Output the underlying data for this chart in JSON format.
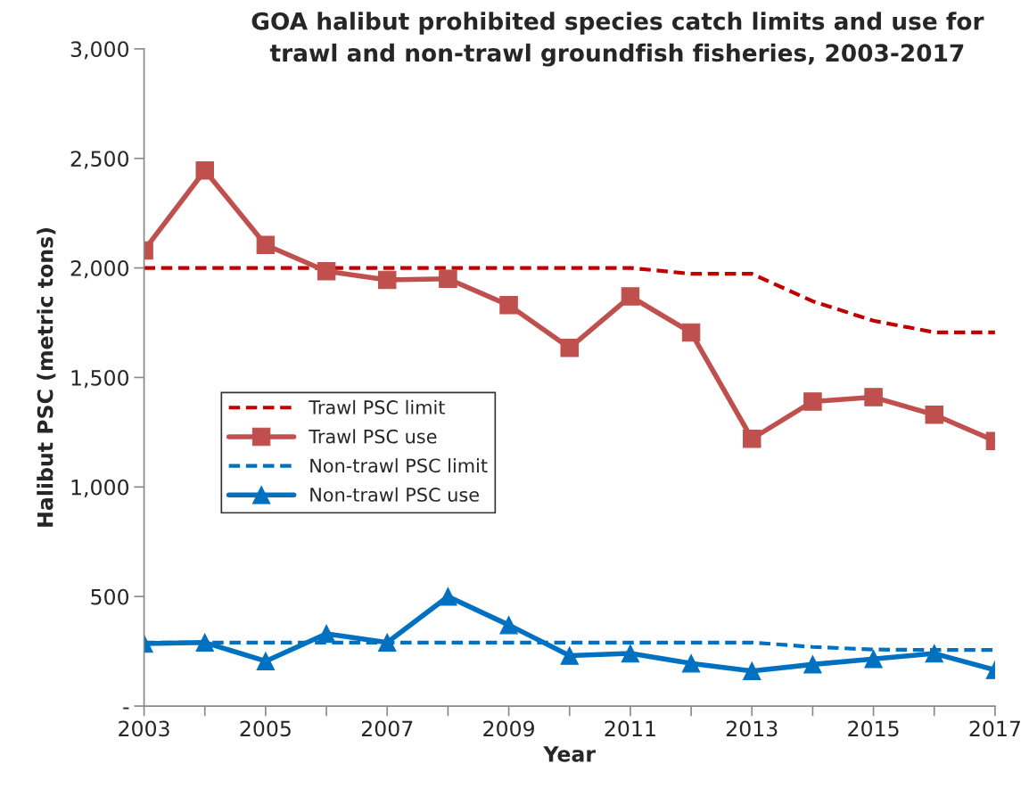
{
  "chart_data": {
    "type": "line",
    "title": "GOA halibut prohibited species catch limits and use for\ntrawl and non-trawl groundfish fisheries, 2003-2017",
    "xlabel": "Year",
    "ylabel": "Halibut PSC (metric tons)",
    "x": [
      2003,
      2004,
      2005,
      2006,
      2007,
      2008,
      2009,
      2010,
      2011,
      2012,
      2013,
      2014,
      2015,
      2016,
      2017
    ],
    "series": [
      {
        "name": "Trawl PSC limit",
        "color": "#c00000",
        "line_style": "dashed",
        "marker": "none",
        "values": [
          2000,
          2000,
          2000,
          2000,
          2000,
          2000,
          2000,
          2000,
          2000,
          1973,
          1973,
          1848,
          1759,
          1706,
          1706
        ]
      },
      {
        "name": "Trawl PSC use",
        "color": "#c0504d",
        "line_style": "solid",
        "marker": "square",
        "values": [
          2080,
          2445,
          2105,
          1985,
          1945,
          1950,
          1830,
          1635,
          1870,
          1705,
          1220,
          1390,
          1410,
          1330,
          1210
        ]
      },
      {
        "name": "Non-trawl PSC limit",
        "color": "#0070c0",
        "line_style": "dashed",
        "marker": "none",
        "values": [
          290,
          290,
          290,
          290,
          290,
          290,
          290,
          290,
          290,
          290,
          290,
          270,
          258,
          256,
          256
        ]
      },
      {
        "name": "Non-trawl PSC use",
        "color": "#0070c0",
        "line_style": "solid",
        "marker": "triangle",
        "values": [
          285,
          290,
          205,
          330,
          290,
          500,
          370,
          230,
          240,
          195,
          160,
          190,
          215,
          240,
          165
        ]
      }
    ],
    "xlim": [
      2003,
      2017
    ],
    "xticks": [
      2003,
      {
        "value": 2004,
        "label": null
      },
      2005,
      {
        "value": 2006,
        "label": null
      },
      2007,
      {
        "value": 2008,
        "label": null
      },
      2009,
      {
        "value": 2010,
        "label": null
      },
      2011,
      {
        "value": 2012,
        "label": null
      },
      2013,
      {
        "value": 2014,
        "label": null
      },
      2015,
      {
        "value": 2016,
        "label": null
      },
      2017
    ],
    "ylim": [
      0,
      3000
    ],
    "yticks": [
      {
        "value": 0,
        "label": "-"
      },
      500,
      {
        "value": 1000,
        "label": "1,000"
      },
      {
        "value": 1500,
        "label": "1,500"
      },
      {
        "value": 2000,
        "label": "2,000"
      },
      {
        "value": 2500,
        "label": "2,500"
      },
      {
        "value": 3000,
        "label": "3,000"
      }
    ],
    "grid": false,
    "legend": "left"
  }
}
